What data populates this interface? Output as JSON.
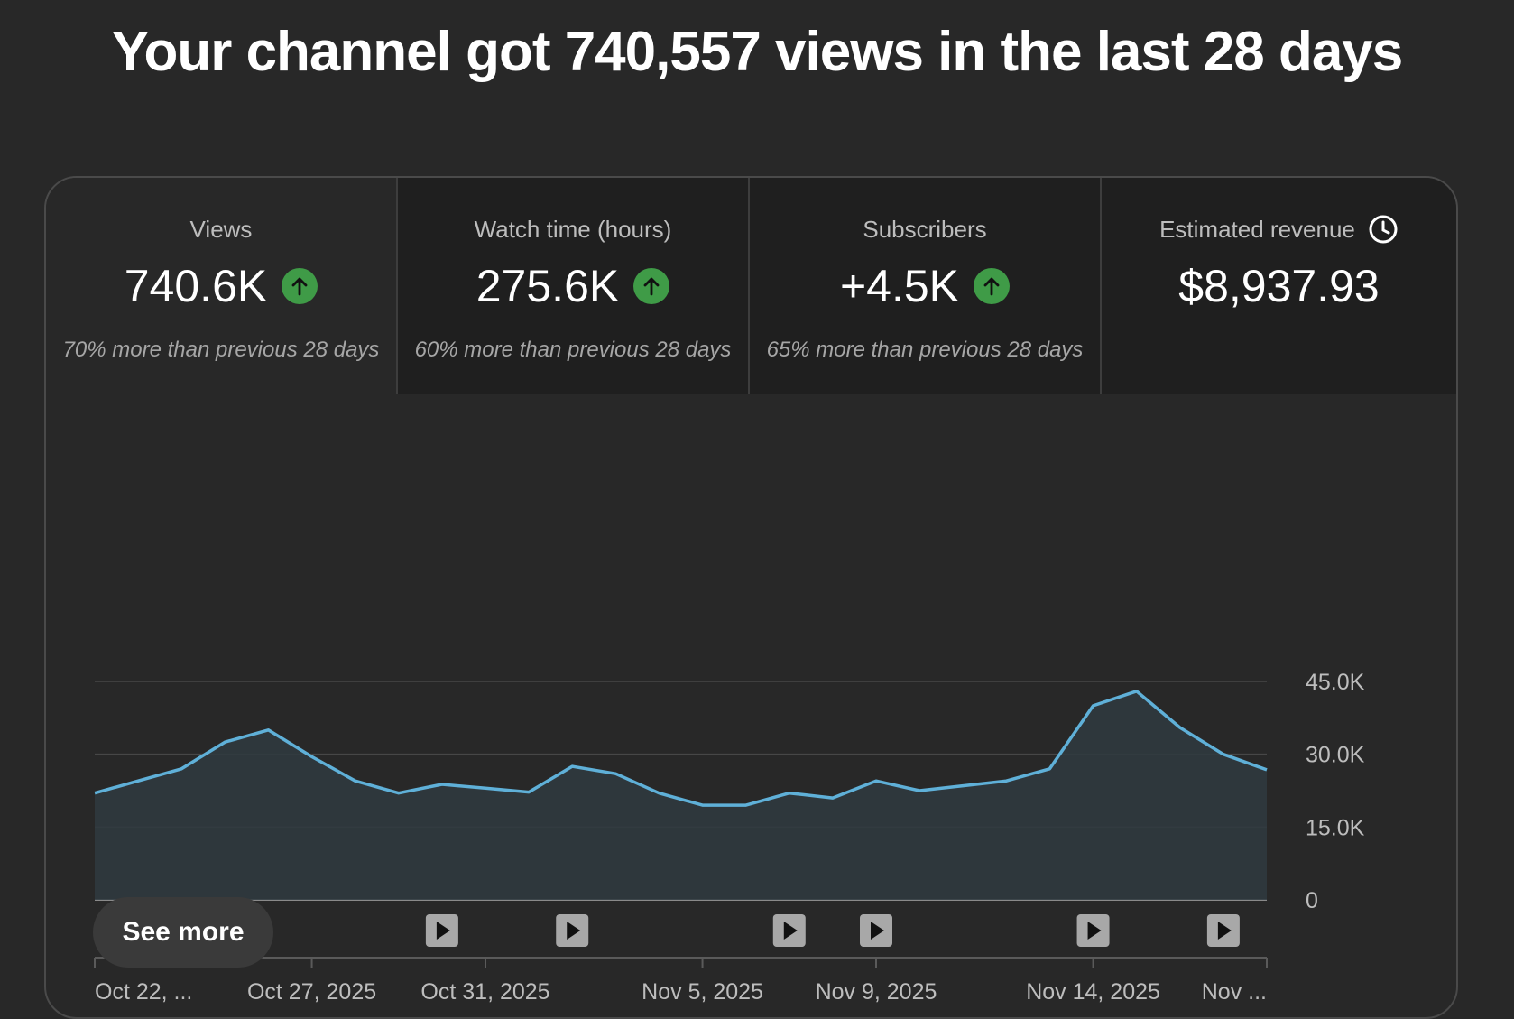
{
  "headline": "Your channel got 740,557 views in the last 28 days",
  "metrics": [
    {
      "label": "Views",
      "value": "740.6K",
      "trend": "up",
      "note": "70% more than previous 28 days"
    },
    {
      "label": "Watch time (hours)",
      "value": "275.6K",
      "trend": "up",
      "note": "60% more than previous 28 days"
    },
    {
      "label": "Subscribers",
      "value": "+4.5K",
      "trend": "up",
      "note": "65% more than previous 28 days"
    },
    {
      "label": "Estimated revenue",
      "value": "$8,937.93",
      "icon": "clock-icon",
      "note": ""
    }
  ],
  "colors": {
    "background": "#282828",
    "line": "#5fb0d8",
    "up_badge": "#3f9b47"
  },
  "chart_data": {
    "type": "area",
    "y_ticks": [
      "45.0K",
      "30.0K",
      "15.0K",
      "0"
    ],
    "ylim": [
      0,
      45000
    ],
    "x_labels": [
      "Oct 22, ...",
      "Oct 27, 2025",
      "Oct 31, 2025",
      "Nov 5, 2025",
      "Nov 9, 2025",
      "Nov 14, 2025",
      "Nov ..."
    ],
    "x_label_days": [
      0,
      5,
      9,
      14,
      18,
      23,
      27
    ],
    "series": [
      {
        "values": [
          22000,
          24500,
          27000,
          32500,
          35000,
          29500,
          24500,
          22000,
          23800,
          23000,
          22200,
          27500,
          26000,
          22000,
          19500,
          19500,
          22000,
          21000,
          24500,
          22500,
          23500,
          24500,
          27000,
          40000,
          43000,
          35500,
          30000,
          26800
        ]
      }
    ],
    "video_marker_days": [
      3,
      8,
      11,
      16,
      18,
      23,
      26
    ],
    "grid": true
  },
  "see_more_label": "See more"
}
